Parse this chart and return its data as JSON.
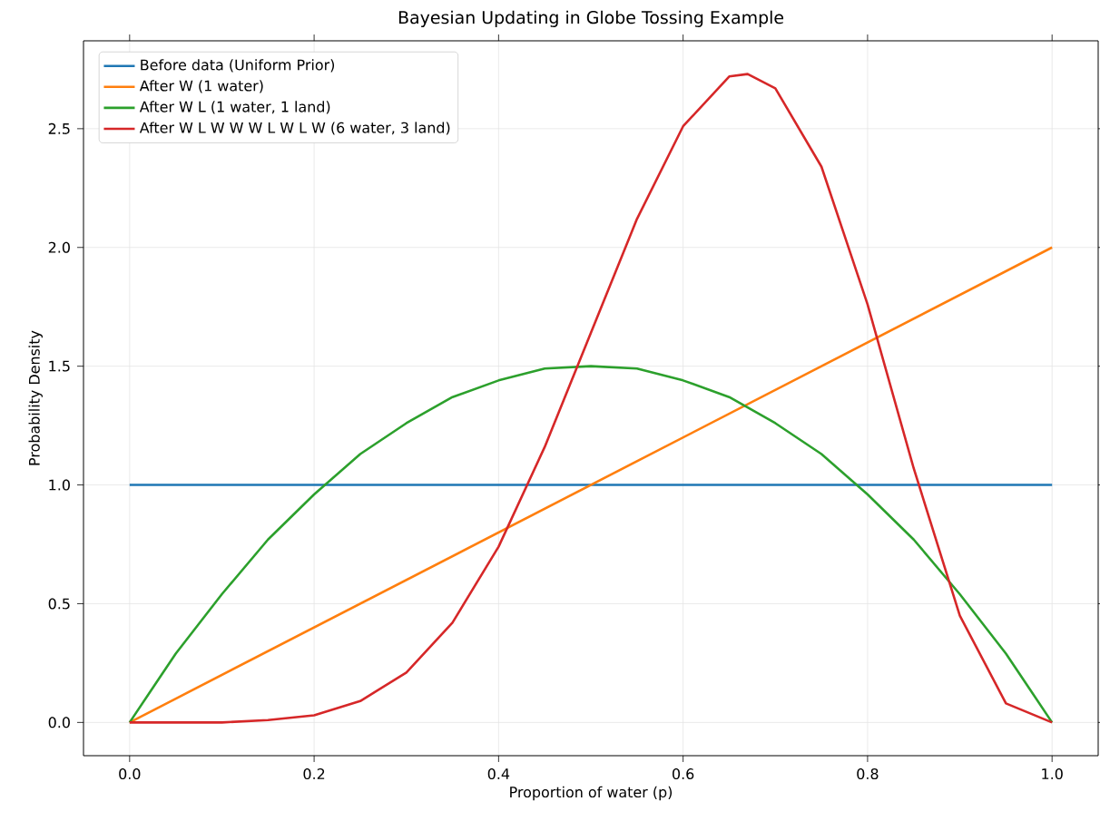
{
  "chart_data": {
    "type": "line",
    "title": "Bayesian Updating in Globe Tossing Example",
    "xlabel": "Proportion of water (p)",
    "ylabel": "Probability Density",
    "series": [
      {
        "name": "Before data (Uniform Prior)",
        "color": "#1f77b4",
        "x": [
          0,
          1
        ],
        "values": [
          1,
          1
        ]
      },
      {
        "name": "After W (1 water)",
        "color": "#ff7f0e",
        "x": [
          0,
          1
        ],
        "values": [
          0,
          2
        ]
      },
      {
        "name": "After W L (1 water, 1 land)",
        "color": "#2ca02c",
        "x": [
          0,
          0.05,
          0.1,
          0.15,
          0.2,
          0.25,
          0.3,
          0.35,
          0.4,
          0.45,
          0.5,
          0.55,
          0.6,
          0.65,
          0.7,
          0.75,
          0.8,
          0.85,
          0.9,
          0.95,
          1
        ],
        "values": [
          0,
          0.29,
          0.54,
          0.77,
          0.96,
          1.13,
          1.26,
          1.37,
          1.44,
          1.49,
          1.5,
          1.49,
          1.44,
          1.37,
          1.26,
          1.13,
          0.96,
          0.77,
          0.54,
          0.29,
          0
        ]
      },
      {
        "name": "After W L W W W L W L W (6 water, 3 land)",
        "color": "#d62728",
        "x": [
          0,
          0.05,
          0.1,
          0.15,
          0.2,
          0.25,
          0.3,
          0.35,
          0.4,
          0.45,
          0.5,
          0.55,
          0.6,
          0.65,
          0.67,
          0.7,
          0.75,
          0.8,
          0.85,
          0.9,
          0.95,
          1
        ],
        "values": [
          0,
          0,
          0,
          0.01,
          0.03,
          0.09,
          0.21,
          0.42,
          0.74,
          1.16,
          1.64,
          2.12,
          2.51,
          2.72,
          2.73,
          2.67,
          2.34,
          1.76,
          1.07,
          0.45,
          0.08,
          0
        ]
      }
    ],
    "xlim": [
      -0.05,
      1.05
    ],
    "ylim": [
      -0.14,
      2.87
    ],
    "xticks": [
      {
        "value": 0,
        "label": "0.0"
      },
      {
        "value": 0.2,
        "label": "0.2"
      },
      {
        "value": 0.4,
        "label": "0.4"
      },
      {
        "value": 0.6,
        "label": "0.6"
      },
      {
        "value": 0.8,
        "label": "0.8"
      },
      {
        "value": 1,
        "label": "1.0"
      }
    ],
    "yticks": [
      {
        "value": 0,
        "label": "0.0"
      },
      {
        "value": 0.5,
        "label": "0.5"
      },
      {
        "value": 1,
        "label": "1.0"
      },
      {
        "value": 1.5,
        "label": "1.5"
      },
      {
        "value": 2,
        "label": "2.0"
      },
      {
        "value": 2.5,
        "label": "2.5"
      }
    ],
    "grid": true,
    "legend": "top left"
  }
}
